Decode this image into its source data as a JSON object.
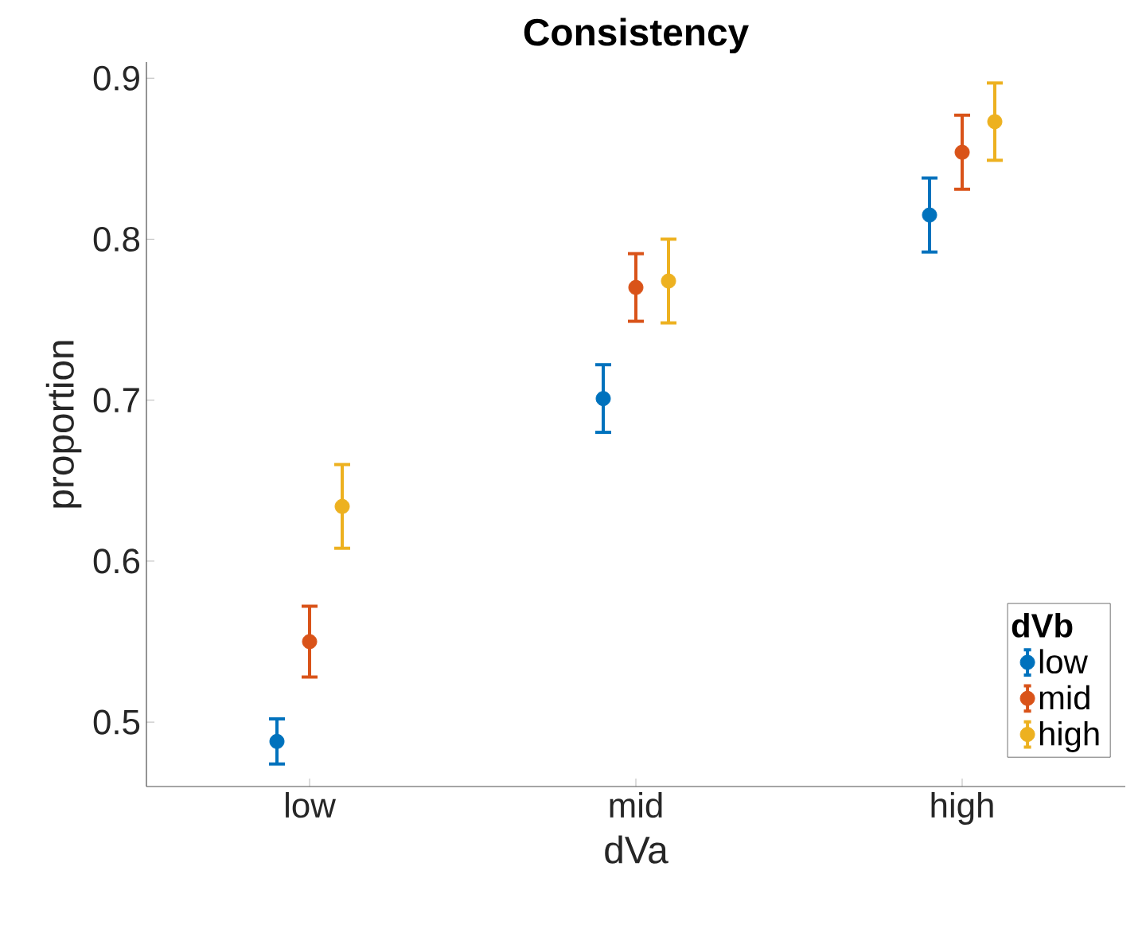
{
  "chart_data": {
    "type": "scatter",
    "title": "Consistency",
    "xlabel": "dVa",
    "ylabel": "proportion",
    "legend_title": "dVb",
    "categories": [
      "low",
      "mid",
      "high"
    ],
    "series": [
      {
        "name": "low",
        "color": "#0072bd",
        "values": [
          0.488,
          0.701,
          0.815
        ],
        "errors": [
          0.014,
          0.021,
          0.023
        ]
      },
      {
        "name": "mid",
        "color": "#d95319",
        "values": [
          0.55,
          0.77,
          0.854
        ],
        "errors": [
          0.022,
          0.021,
          0.023
        ]
      },
      {
        "name": "high",
        "color": "#edb120",
        "values": [
          0.634,
          0.774,
          0.873
        ],
        "errors": [
          0.026,
          0.026,
          0.024
        ]
      }
    ],
    "ylim": [
      0.46,
      0.91
    ],
    "yticks": [
      0.5,
      0.6,
      0.7,
      0.8,
      0.9
    ],
    "marker": "circle",
    "legend": "bottom right",
    "grid": false
  }
}
